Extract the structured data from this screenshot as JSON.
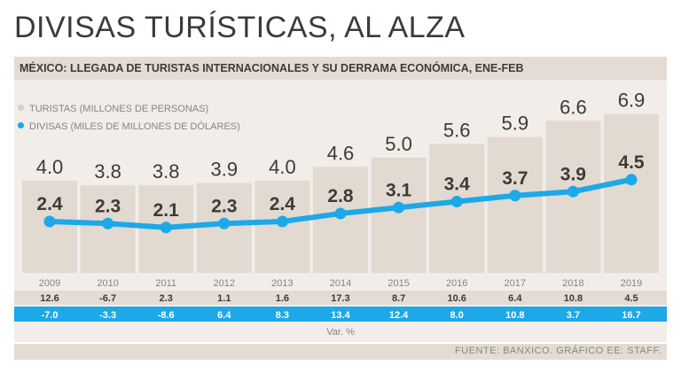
{
  "title": "DIVISAS TURÍSTICAS, AL ALZA",
  "subtitle": "MÉXICO: LLEGADA DE TURISTAS INTERNACIONALES Y SU DERRAMA ECONÓMICA, ENE-FEB",
  "legend": {
    "turistas": "TURISTAS (MILLONES DE PERSONAS)",
    "divisas": "DIVISAS (MILES DE MILLONES DE DÓLARES)"
  },
  "var_label": "Var. %",
  "source": "FUENTE: BANXICO. GRÁFICO EE: STAFF.",
  "colors": {
    "bar": "#e2d9d1",
    "line": "#1da8e8",
    "panel": "#f1ede9",
    "text_dark": "#3f3a36",
    "text_muted": "#8a8480"
  },
  "chart_data": {
    "type": "bar+line",
    "title": "DIVISAS TURÍSTICAS, AL ALZA",
    "categories": [
      "2009",
      "2010",
      "2011",
      "2012",
      "2013",
      "2014",
      "2015",
      "2016",
      "2017",
      "2018",
      "2019"
    ],
    "series": [
      {
        "name": "TURISTAS (MILLONES DE PERSONAS)",
        "type": "bar",
        "values": [
          4.0,
          3.8,
          3.8,
          3.9,
          4.0,
          4.6,
          5.0,
          5.6,
          5.9,
          6.6,
          6.9
        ],
        "labels": [
          "4.0",
          "3.8",
          "3.8",
          "3.9",
          "4.0",
          "4.6",
          "5.0",
          "5.6",
          "5.9",
          "6.6",
          "6.9"
        ],
        "var_pct": [
          "12.6",
          "-6.7",
          "2.3",
          "1.1",
          "1.6",
          "17.3",
          "8.7",
          "10.6",
          "6.4",
          "10.8",
          "4.5"
        ]
      },
      {
        "name": "DIVISAS (MILES DE MILLONES DE DÓLARES)",
        "type": "line",
        "values": [
          2.4,
          2.3,
          2.1,
          2.3,
          2.4,
          2.8,
          3.1,
          3.4,
          3.7,
          3.9,
          4.5
        ],
        "labels": [
          "2.4",
          "2.3",
          "2.1",
          "2.3",
          "2.4",
          "2.8",
          "3.1",
          "3.4",
          "3.7",
          "3.9",
          "4.5"
        ],
        "var_pct": [
          "-7.0",
          "-3.3",
          "-8.6",
          "6.4",
          "8.3",
          "13.4",
          "12.4",
          "8.0",
          "10.8",
          "3.7",
          "16.7"
        ]
      }
    ]
  }
}
